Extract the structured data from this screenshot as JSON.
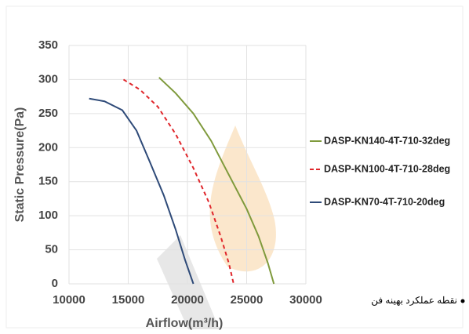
{
  "chart_data": {
    "type": "line",
    "x_label": "Airflow(m³/h)",
    "y_label": "Static Pressure(Pa)",
    "annotation": "نقطه عملکرد بهینه فن",
    "xlim": [
      10000,
      30000
    ],
    "xticks": [
      10000,
      15000,
      20000,
      25000,
      30000
    ],
    "ylim": [
      0,
      350
    ],
    "yticks": [
      0,
      50,
      100,
      150,
      200,
      250,
      300,
      350
    ],
    "grid": true,
    "series": [
      {
        "name": "DASP-KN140-4T-710-32deg",
        "color": "#7f9a3c",
        "style": "solid",
        "x": [
          17600,
          19000,
          20500,
          22000,
          23500,
          25000,
          26000,
          26800,
          27300
        ],
        "values": [
          303,
          280,
          250,
          210,
          160,
          110,
          70,
          30,
          0
        ]
      },
      {
        "name": "DASP-KN100-4T-710-28deg",
        "color": "#e0262b",
        "style": "dashed",
        "x": [
          14600,
          16000,
          17500,
          19000,
          20500,
          21800,
          22800,
          23500,
          23900
        ],
        "values": [
          300,
          285,
          260,
          220,
          170,
          120,
          70,
          30,
          0
        ]
      },
      {
        "name": "DASP-KN70-4T-710-20deg",
        "color": "#2e4a78",
        "style": "solid",
        "x": [
          11700,
          13000,
          14500,
          15700,
          16800,
          18000,
          19000,
          19800,
          20500
        ],
        "values": [
          272,
          268,
          255,
          225,
          180,
          130,
          80,
          35,
          0
        ]
      }
    ]
  }
}
